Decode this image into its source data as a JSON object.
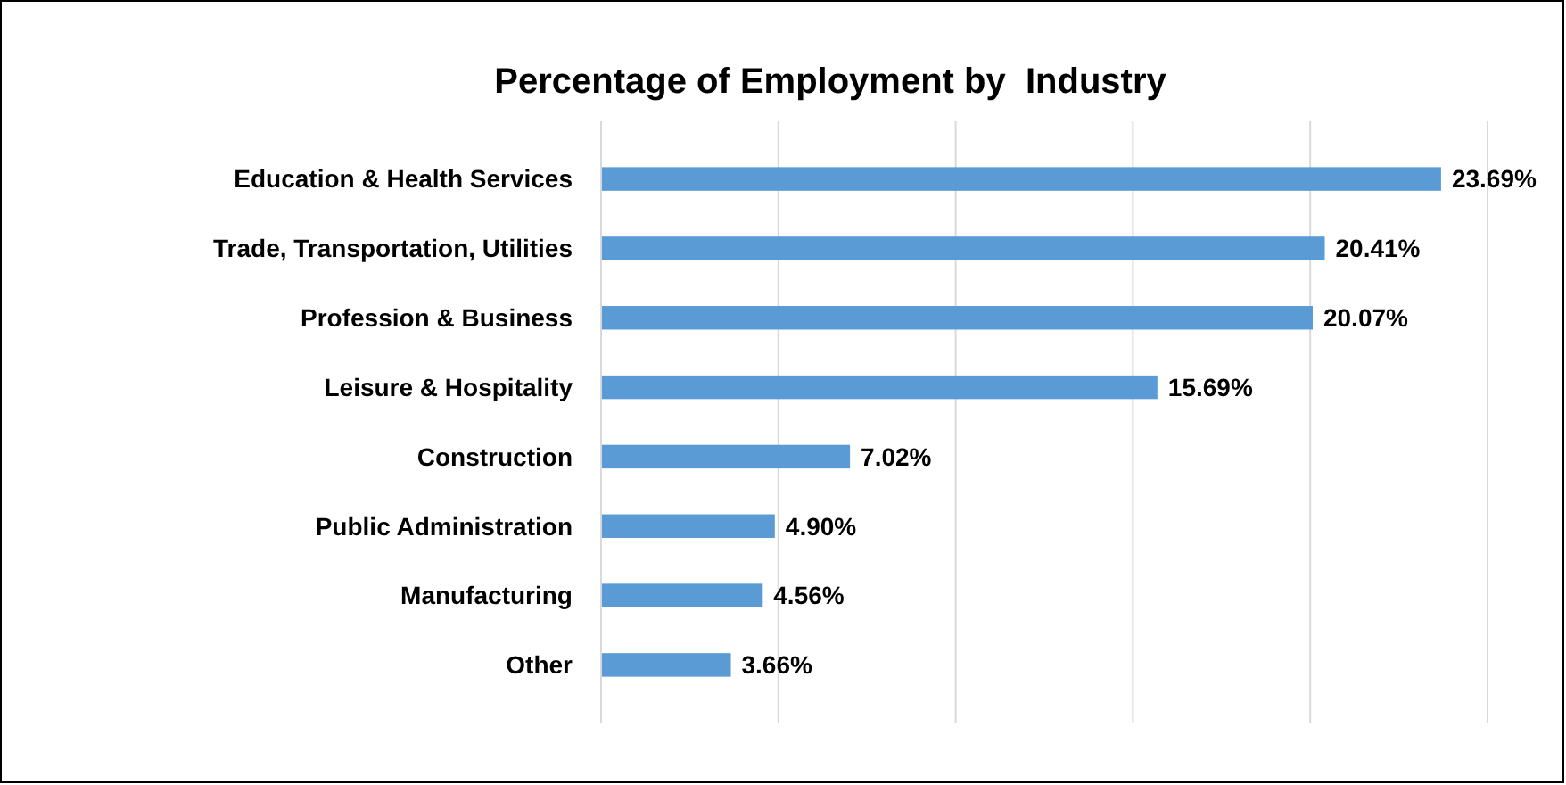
{
  "chart_data": {
    "type": "bar",
    "orientation": "horizontal",
    "title": "Percentage of Employment by  Industry",
    "categories": [
      "Education & Health Services",
      "Trade, Transportation, Utilities",
      "Profession & Business",
      "Leisure & Hospitality",
      "Construction",
      "Public Administration",
      "Manufacturing",
      "Other"
    ],
    "values": [
      23.69,
      20.41,
      20.07,
      15.69,
      7.02,
      4.9,
      4.56,
      3.66
    ],
    "value_labels": [
      "23.69%",
      "20.41%",
      "20.07%",
      "15.69%",
      "7.02%",
      "4.90%",
      "4.56%",
      "3.66%"
    ],
    "color": "#5b9bd5",
    "xlim": [
      0,
      25
    ],
    "xticks": [
      {
        "value": 0,
        "label": null
      },
      {
        "value": 5,
        "label": null
      },
      {
        "value": 10,
        "label": null
      },
      {
        "value": 15,
        "label": null
      },
      {
        "value": 20,
        "label": null
      },
      {
        "value": 25,
        "label": null
      }
    ],
    "tick_labels": "y",
    "grid": "x"
  }
}
